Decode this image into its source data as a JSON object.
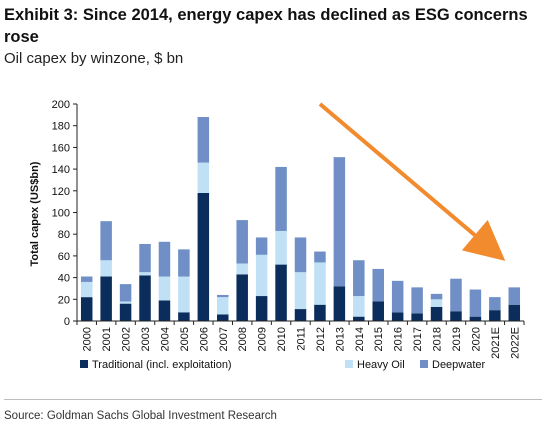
{
  "exhibit": {
    "title": "Exhibit 3: Since 2014, energy capex has declined as ESG concerns rose",
    "subtitle": "Oil capex by winzone, $ bn"
  },
  "source": "Source: Goldman Sachs Global Investment Research",
  "chart_data": {
    "type": "bar",
    "stacked": true,
    "title": "",
    "xlabel": "",
    "ylabel": "Total capex (US$bn)",
    "ylim": [
      0,
      200
    ],
    "yticks": [
      0,
      20,
      40,
      60,
      80,
      100,
      120,
      140,
      160,
      180,
      200
    ],
    "grid": false,
    "legend_position": "bottom",
    "categories": [
      "2000",
      "2001",
      "2002",
      "2003",
      "2004",
      "2005",
      "2006",
      "2007",
      "2008",
      "2009",
      "2010",
      "2011",
      "2012",
      "2013",
      "2014",
      "2015",
      "2016",
      "2017",
      "2018",
      "2019",
      "2020",
      "2021E",
      "2022E"
    ],
    "series": [
      {
        "name": "Traditional (incl. exploitation)",
        "color": "#0b2d5b",
        "values": [
          22,
          41,
          16,
          42,
          19,
          8,
          118,
          6,
          43,
          23,
          52,
          11,
          15,
          32,
          4,
          18,
          8,
          7,
          13,
          9,
          4,
          10,
          15
        ]
      },
      {
        "name": "Heavy Oil",
        "color": "#bfe0f5",
        "values": [
          14,
          15,
          2,
          3,
          22,
          33,
          28,
          16,
          10,
          38,
          31,
          34,
          39,
          0,
          19,
          0,
          0,
          0,
          7,
          0,
          0,
          0,
          0
        ]
      },
      {
        "name": "Deepwater",
        "color": "#6f8fc6",
        "values": [
          5,
          36,
          16,
          26,
          32,
          25,
          42,
          2,
          40,
          16,
          59,
          32,
          10,
          119,
          33,
          30,
          29,
          24,
          5,
          30,
          25,
          12,
          16
        ]
      }
    ],
    "annotation": {
      "type": "arrow",
      "color": "#f28a2e",
      "description": "downward trend"
    }
  }
}
